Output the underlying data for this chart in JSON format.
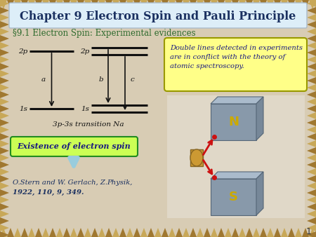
{
  "title": "Chapter 9 Electron Spin and Pauli Principle",
  "section": "§9.1 Electron Spin: Experimental evidences",
  "bg_color": "#d8ccb4",
  "title_box_color": "#ddeef8",
  "title_color": "#1a3060",
  "section_color": "#2e6b2e",
  "yellow_box_text": "Double lines detected in experiments\nare in conflict with the theory of\natomic spectroscopy.",
  "yellow_box_color": "#ffff88",
  "yellow_box_border": "#999900",
  "green_box_text": "Existence of electron spin",
  "green_box_color": "#ccff55",
  "green_box_border": "#228B22",
  "ref_line1": "O.Stern and W. Gerlach, Z. ",
  "ref_line1b": "Physik,",
  "ref_line2": "1922, 110, 9, 349.",
  "ref_color": "#1a3060",
  "diagram_line_color": "#111111",
  "page_num": "1",
  "sg_bg": "#e8e0d0",
  "n_color": "#ccaa00",
  "s_color": "#ccaa00"
}
